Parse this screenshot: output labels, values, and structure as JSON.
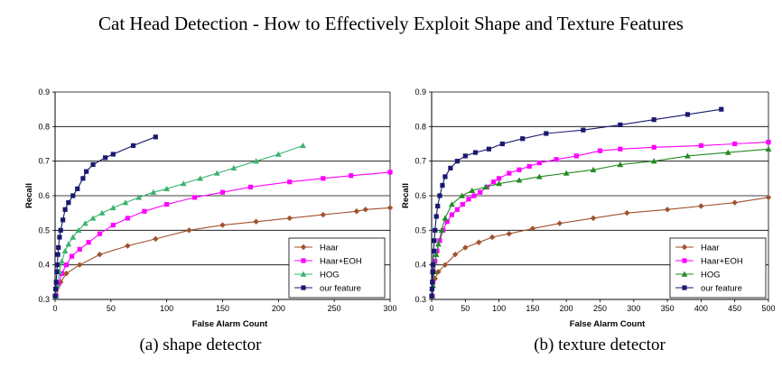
{
  "page": {
    "title": "Cat Head Detection - How to Effectively Exploit Shape and Texture Features",
    "captions": [
      "(a) shape detector",
      "(b) texture detector"
    ]
  },
  "chart_data": [
    {
      "type": "line",
      "caption": "(a) shape detector",
      "xlabel": "False Alarm Count",
      "ylabel": "Recall",
      "xlim": [
        0,
        300
      ],
      "ylim": [
        0.3,
        0.9
      ],
      "xticks": [
        0,
        50,
        100,
        150,
        200,
        250,
        300
      ],
      "yticks": [
        0.3,
        0.4,
        0.5,
        0.6,
        0.7,
        0.8,
        0.9
      ],
      "grid": "horizontal",
      "legend_position": "bottom-right",
      "series": [
        {
          "name": "Haar",
          "color": "#a0522d",
          "marker": "diamond",
          "x": [
            1,
            5,
            10,
            22,
            40,
            65,
            90,
            120,
            150,
            180,
            210,
            240,
            270,
            278,
            300
          ],
          "y": [
            0.31,
            0.35,
            0.375,
            0.4,
            0.43,
            0.455,
            0.475,
            0.5,
            0.515,
            0.525,
            0.535,
            0.545,
            0.555,
            0.56,
            0.565
          ]
        },
        {
          "name": "Haar+EOH",
          "color": "#ff00ff",
          "marker": "square",
          "x": [
            1,
            3,
            6,
            10,
            15,
            22,
            30,
            40,
            52,
            65,
            80,
            100,
            125,
            150,
            175,
            210,
            240,
            265,
            300
          ],
          "y": [
            0.31,
            0.345,
            0.375,
            0.4,
            0.425,
            0.445,
            0.465,
            0.49,
            0.515,
            0.535,
            0.555,
            0.575,
            0.595,
            0.61,
            0.625,
            0.64,
            0.65,
            0.658,
            0.668
          ]
        },
        {
          "name": "HOG",
          "color": "#3cb371",
          "marker": "triangle",
          "x": [
            1,
            2,
            4,
            6,
            9,
            12,
            16,
            21,
            27,
            34,
            42,
            52,
            63,
            75,
            88,
            100,
            115,
            130,
            145,
            160,
            180,
            200,
            222
          ],
          "y": [
            0.31,
            0.34,
            0.38,
            0.41,
            0.44,
            0.46,
            0.48,
            0.5,
            0.52,
            0.535,
            0.55,
            0.565,
            0.58,
            0.595,
            0.61,
            0.62,
            0.635,
            0.65,
            0.665,
            0.68,
            0.7,
            0.72,
            0.745
          ]
        },
        {
          "name": "our feature",
          "color": "#191970",
          "marker": "square",
          "x": [
            0,
            0.5,
            1,
            1.5,
            2,
            2.5,
            3,
            4,
            5,
            7,
            9,
            12,
            16,
            20,
            25,
            28,
            34,
            45,
            52,
            70,
            90
          ],
          "y": [
            0.31,
            0.33,
            0.35,
            0.38,
            0.4,
            0.43,
            0.45,
            0.48,
            0.5,
            0.53,
            0.56,
            0.58,
            0.6,
            0.62,
            0.65,
            0.67,
            0.69,
            0.71,
            0.72,
            0.745,
            0.77
          ]
        }
      ]
    },
    {
      "type": "line",
      "caption": "(b) texture detector",
      "xlabel": "False Alarm Count",
      "ylabel": "Recall",
      "xlim": [
        0,
        500
      ],
      "ylim": [
        0.3,
        0.9
      ],
      "xticks": [
        0,
        50,
        100,
        150,
        200,
        250,
        300,
        350,
        400,
        450,
        500
      ],
      "yticks": [
        0.3,
        0.4,
        0.5,
        0.6,
        0.7,
        0.8,
        0.9
      ],
      "grid": "horizontal",
      "legend_position": "bottom-right",
      "series": [
        {
          "name": "Haar",
          "color": "#a0522d",
          "marker": "diamond",
          "x": [
            1,
            5,
            10,
            20,
            35,
            50,
            70,
            90,
            115,
            150,
            190,
            240,
            290,
            350,
            400,
            450,
            500
          ],
          "y": [
            0.31,
            0.36,
            0.38,
            0.4,
            0.43,
            0.45,
            0.465,
            0.48,
            0.49,
            0.505,
            0.52,
            0.535,
            0.55,
            0.56,
            0.57,
            0.58,
            0.595
          ]
        },
        {
          "name": "Haar+EOH",
          "color": "#ff00ff",
          "marker": "square",
          "x": [
            1,
            2,
            3,
            5,
            8,
            12,
            17,
            23,
            30,
            38,
            46,
            55,
            63,
            72,
            82,
            92,
            100,
            115,
            130,
            145,
            160,
            185,
            215,
            250,
            280,
            330,
            400,
            450,
            500
          ],
          "y": [
            0.31,
            0.35,
            0.38,
            0.41,
            0.44,
            0.47,
            0.5,
            0.525,
            0.545,
            0.56,
            0.575,
            0.59,
            0.6,
            0.61,
            0.625,
            0.64,
            0.65,
            0.665,
            0.675,
            0.685,
            0.695,
            0.705,
            0.715,
            0.73,
            0.735,
            0.74,
            0.745,
            0.75,
            0.755
          ]
        },
        {
          "name": "HOG",
          "color": "#228b22",
          "marker": "triangle",
          "x": [
            1,
            2,
            4,
            7,
            10,
            15,
            20,
            30,
            45,
            60,
            80,
            100,
            130,
            160,
            200,
            240,
            280,
            330,
            380,
            440,
            500
          ],
          "y": [
            0.31,
            0.34,
            0.38,
            0.43,
            0.46,
            0.5,
            0.535,
            0.575,
            0.6,
            0.615,
            0.625,
            0.635,
            0.645,
            0.655,
            0.665,
            0.675,
            0.69,
            0.7,
            0.715,
            0.725,
            0.735
          ]
        },
        {
          "name": "our feature",
          "color": "#191970",
          "marker": "square",
          "x": [
            0,
            0.5,
            1,
            1.5,
            2,
            3,
            4,
            5,
            7,
            9,
            12,
            16,
            20,
            28,
            38,
            50,
            65,
            85,
            105,
            135,
            170,
            225,
            280,
            330,
            380,
            430
          ],
          "y": [
            0.31,
            0.33,
            0.35,
            0.38,
            0.4,
            0.44,
            0.47,
            0.5,
            0.54,
            0.57,
            0.6,
            0.63,
            0.655,
            0.68,
            0.7,
            0.715,
            0.725,
            0.735,
            0.75,
            0.765,
            0.78,
            0.79,
            0.805,
            0.82,
            0.835,
            0.85
          ]
        }
      ]
    }
  ],
  "legend_entries": [
    "Haar",
    "Haar+EOH",
    "HOG",
    "our feature"
  ],
  "icons": {
    "Haar": "diamond-marker-icon",
    "Haar+EOH": "square-marker-icon",
    "HOG": "triangle-marker-icon",
    "our feature": "square-marker-icon"
  },
  "colors": {
    "axis": "#000000",
    "grid": "#000000",
    "background": "#ffffff"
  }
}
